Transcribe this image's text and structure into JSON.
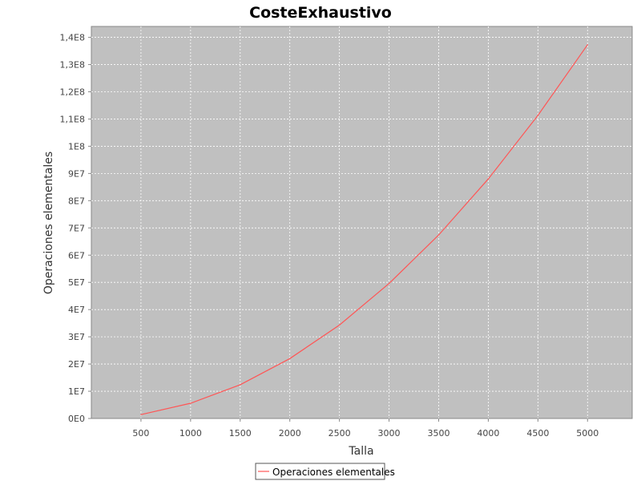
{
  "chart_data": {
    "type": "line",
    "title": "CosteExhaustivo",
    "xlabel": "Talla",
    "ylabel": "Operaciones elementales",
    "x": [
      500,
      1000,
      1500,
      2000,
      2500,
      3000,
      3500,
      4000,
      4500,
      5000
    ],
    "x_tick_labels": [
      "500",
      "1000",
      "1500",
      "2000",
      "2500",
      "3000",
      "3500",
      "4000",
      "4500",
      "5000"
    ],
    "y_tick_labels": [
      "0E0",
      "1E7",
      "2E7",
      "3E7",
      "4E7",
      "5E7",
      "6E7",
      "7E7",
      "8E7",
      "9E7",
      "1E8",
      "1,1E8",
      "1,2E8",
      "1,3E8",
      "1,4E8"
    ],
    "y_ticks": [
      0,
      10000000,
      20000000,
      30000000,
      40000000,
      50000000,
      60000000,
      70000000,
      80000000,
      90000000,
      100000000,
      110000000,
      120000000,
      130000000,
      140000000
    ],
    "xlim": [
      0,
      5450
    ],
    "ylim": [
      0,
      144000000
    ],
    "grid": true,
    "legend_position": "bottom-center",
    "background_color": "#c0c0c0",
    "series": [
      {
        "name": "Operaciones elementales",
        "color": "#ff5555",
        "values": [
          1400000,
          5600000,
          12400000,
          22000000,
          34300000,
          49600000,
          67400000,
          88000000,
          111300000,
          137300000
        ]
      }
    ]
  }
}
